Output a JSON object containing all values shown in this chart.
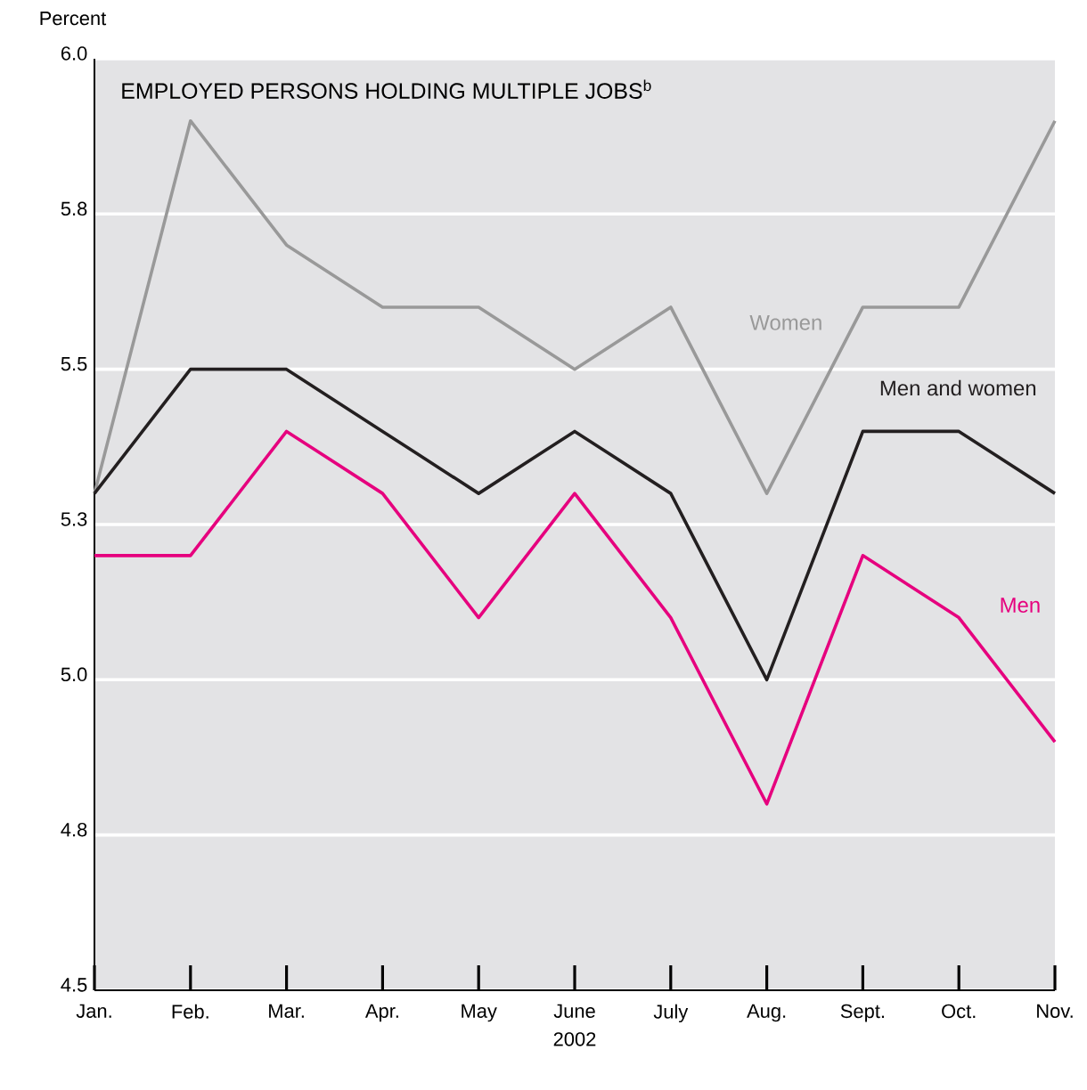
{
  "chart_data": {
    "type": "line",
    "title": "EMPLOYED PERSONS HOLDING MULTIPLE JOBS$^{b}$",
    "ylabel": "Percent",
    "xlabel": "2002",
    "categories": [
      "Jan.",
      "Feb.",
      "Mar.",
      "Apr.",
      "May",
      "June",
      "July",
      "Aug.",
      "Sept.",
      "Oct.",
      "Nov."
    ],
    "series": [
      {
        "name": "Women",
        "color": "#999999",
        "values": [
          5.3,
          5.9,
          5.7,
          5.6,
          5.6,
          5.5,
          5.6,
          5.3,
          5.6,
          5.6,
          5.9
        ]
      },
      {
        "name": "Men and women",
        "color": "#231f20",
        "values": [
          5.3,
          5.5,
          5.5,
          5.4,
          5.3,
          5.4,
          5.3,
          5.0,
          5.4,
          5.4,
          5.3
        ]
      },
      {
        "name": "Men",
        "color": "#e6007e",
        "values": [
          5.2,
          5.2,
          5.4,
          5.3,
          5.1,
          5.3,
          5.1,
          4.8,
          5.2,
          5.1,
          4.9
        ]
      }
    ],
    "ylim": [
      4.5,
      6.0
    ],
    "yticks": [
      4.5,
      {
        "value": 4.75,
        "label": "4.8"
      },
      {
        "value": 5.0,
        "label": "5.0"
      },
      {
        "value": 5.25,
        "label": "5.3"
      },
      5.5,
      {
        "value": 5.75,
        "label": "5.8"
      },
      {
        "value": 6.0,
        "label": "6.0"
      }
    ],
    "grid": "y",
    "legend": false,
    "marker": "none",
    "line_style": "solid"
  }
}
